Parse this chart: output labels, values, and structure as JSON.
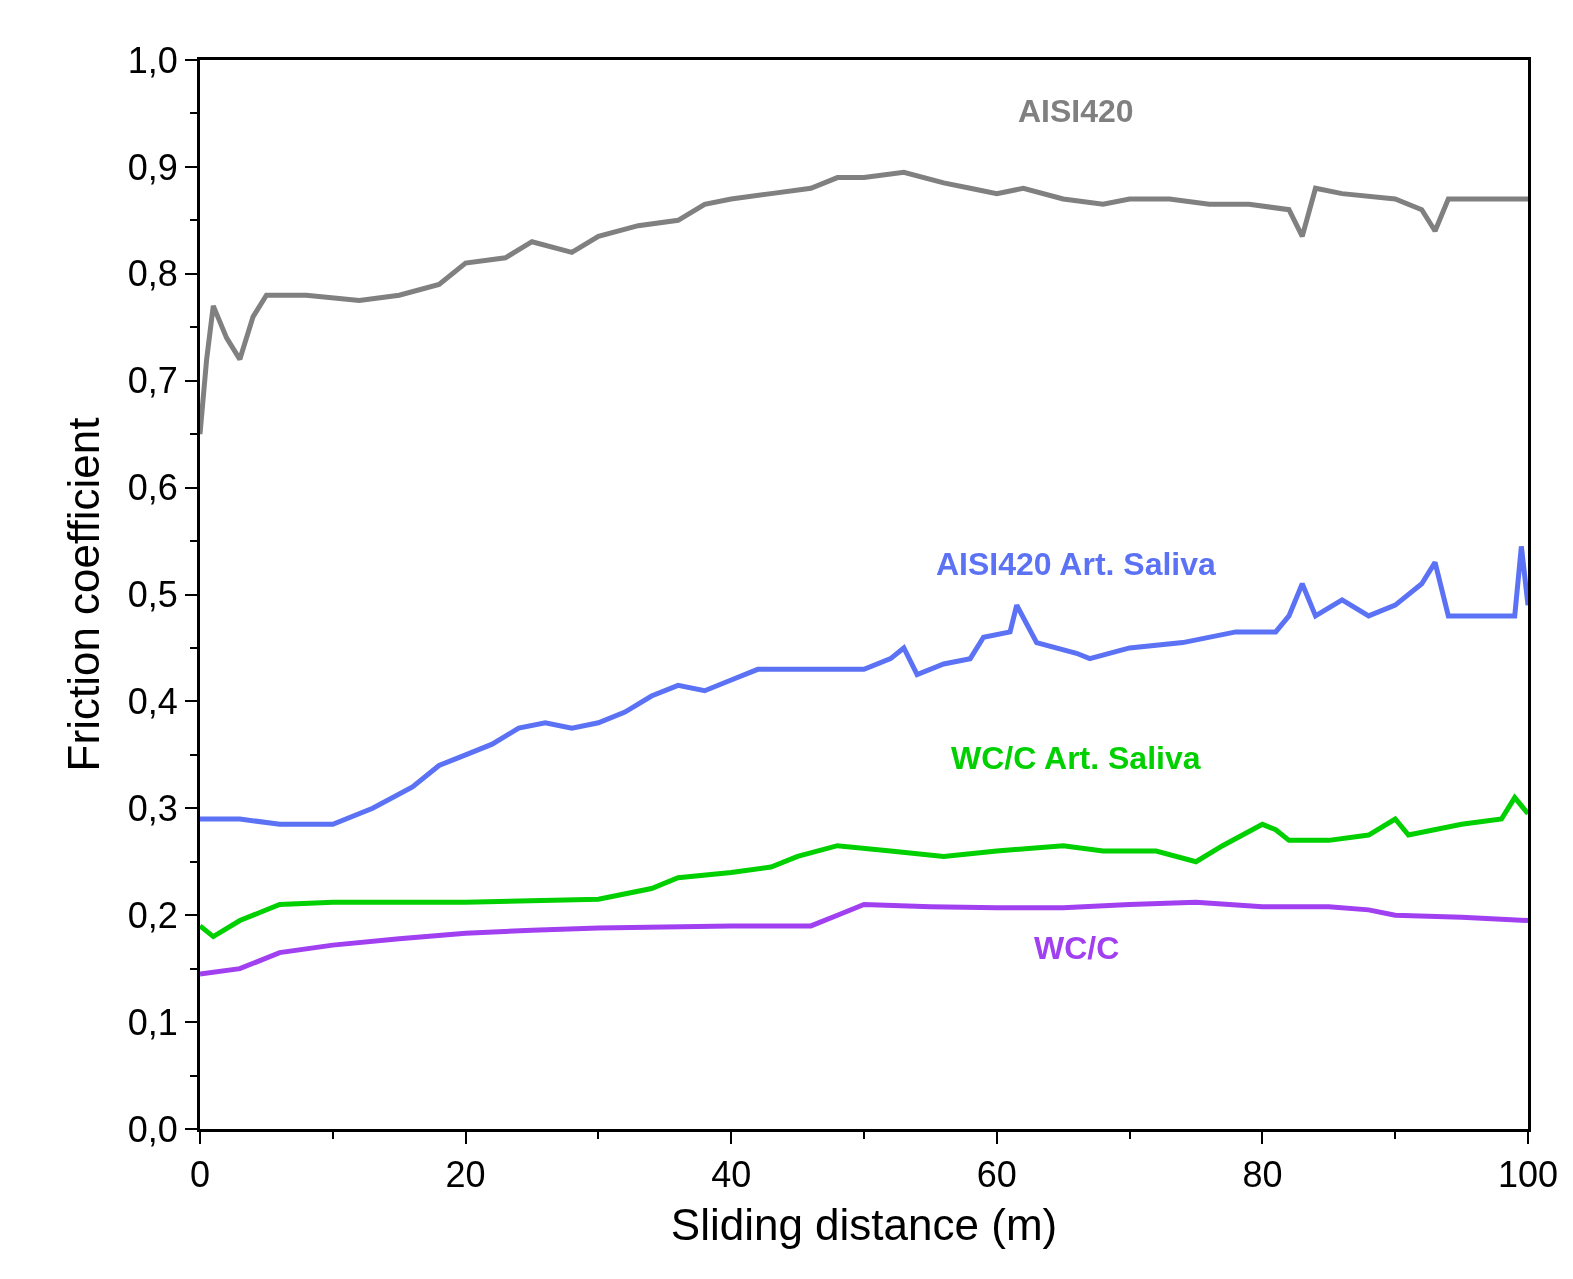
{
  "chart_data": {
    "type": "line",
    "xlabel": "Sliding distance (m)",
    "ylabel": "Friction coefficient",
    "xlim": [
      0,
      100
    ],
    "xticks": [
      0,
      20,
      40,
      60,
      80,
      100
    ],
    "ylim": [
      0,
      1.0
    ],
    "yticks": [
      {
        "value": 0,
        "label": "0,0"
      },
      {
        "value": 0.1,
        "label": "0,1"
      },
      {
        "value": 0.2,
        "label": "0,2"
      },
      {
        "value": 0.3,
        "label": "0,3"
      },
      {
        "value": 0.4,
        "label": "0,4"
      },
      {
        "value": 0.5,
        "label": "0,5"
      },
      {
        "value": 0.6,
        "label": "0,6"
      },
      {
        "value": 0.7,
        "label": "0,7"
      },
      {
        "value": 0.8,
        "label": "0,8"
      },
      {
        "value": 0.9,
        "label": "0,9"
      },
      {
        "value": 1.0,
        "label": "1,0"
      }
    ],
    "legend": false,
    "marker": "none",
    "line_style": "solid",
    "series": [
      {
        "name": "AISI420",
        "color": "#808080",
        "x": [
          0,
          0.5,
          1,
          2,
          3,
          4,
          5,
          8,
          12,
          15,
          18,
          20,
          23,
          25,
          28,
          30,
          33,
          36,
          38,
          40,
          43,
          46,
          48,
          50,
          53,
          56,
          58,
          60,
          62,
          65,
          68,
          70,
          73,
          76,
          79,
          82,
          83,
          84,
          86,
          90,
          92,
          93,
          94,
          97,
          100
        ],
        "values": [
          0.65,
          0.72,
          0.77,
          0.74,
          0.72,
          0.76,
          0.78,
          0.78,
          0.775,
          0.78,
          0.79,
          0.81,
          0.815,
          0.83,
          0.82,
          0.835,
          0.845,
          0.85,
          0.865,
          0.87,
          0.875,
          0.88,
          0.89,
          0.89,
          0.895,
          0.885,
          0.88,
          0.875,
          0.88,
          0.87,
          0.865,
          0.87,
          0.87,
          0.865,
          0.865,
          0.86,
          0.835,
          0.88,
          0.875,
          0.87,
          0.86,
          0.84,
          0.87,
          0.87,
          0.87
        ]
      },
      {
        "name": "AISI420 Art. Saliva",
        "color": "#5b72f5",
        "x": [
          0,
          3,
          6,
          10,
          13,
          16,
          18,
          20,
          22,
          24,
          26,
          28,
          30,
          32,
          34,
          36,
          38,
          40,
          42,
          45,
          48,
          50,
          52,
          53,
          54,
          56,
          58,
          59,
          61,
          61.5,
          63,
          66,
          67,
          70,
          74,
          78,
          81,
          82,
          83,
          84,
          86,
          88,
          90,
          92,
          93,
          94,
          96,
          99,
          99.5,
          100
        ],
        "values": [
          0.29,
          0.29,
          0.285,
          0.285,
          0.3,
          0.32,
          0.34,
          0.35,
          0.36,
          0.375,
          0.38,
          0.375,
          0.38,
          0.39,
          0.405,
          0.415,
          0.41,
          0.42,
          0.43,
          0.43,
          0.43,
          0.43,
          0.44,
          0.45,
          0.425,
          0.435,
          0.44,
          0.46,
          0.465,
          0.49,
          0.455,
          0.445,
          0.44,
          0.45,
          0.455,
          0.465,
          0.465,
          0.48,
          0.51,
          0.48,
          0.495,
          0.48,
          0.49,
          0.51,
          0.53,
          0.48,
          0.48,
          0.48,
          0.545,
          0.49
        ]
      },
      {
        "name": "WC/C Art. Saliva",
        "color": "#00d000",
        "x": [
          0,
          1,
          3,
          6,
          10,
          20,
          30,
          34,
          36,
          40,
          43,
          45,
          48,
          52,
          56,
          60,
          65,
          68,
          72,
          75,
          77,
          80,
          81,
          82,
          85,
          88,
          90,
          91,
          95,
          98,
          99,
          100
        ],
        "values": [
          0.19,
          0.18,
          0.195,
          0.21,
          0.212,
          0.212,
          0.215,
          0.225,
          0.235,
          0.24,
          0.245,
          0.255,
          0.265,
          0.26,
          0.255,
          0.26,
          0.265,
          0.26,
          0.26,
          0.25,
          0.265,
          0.285,
          0.28,
          0.27,
          0.27,
          0.275,
          0.29,
          0.275,
          0.285,
          0.29,
          0.31,
          0.295
        ]
      },
      {
        "name": "WC/C",
        "color": "#a040f0",
        "x": [
          0,
          3,
          6,
          10,
          15,
          20,
          25,
          30,
          40,
          46,
          48,
          50,
          55,
          60,
          65,
          70,
          75,
          80,
          85,
          88,
          90,
          95,
          100
        ],
        "values": [
          0.145,
          0.15,
          0.165,
          0.172,
          0.178,
          0.183,
          0.186,
          0.188,
          0.19,
          0.19,
          0.2,
          0.21,
          0.208,
          0.207,
          0.207,
          0.21,
          0.212,
          0.208,
          0.208,
          0.205,
          0.2,
          0.198,
          0.195
        ]
      }
    ]
  }
}
